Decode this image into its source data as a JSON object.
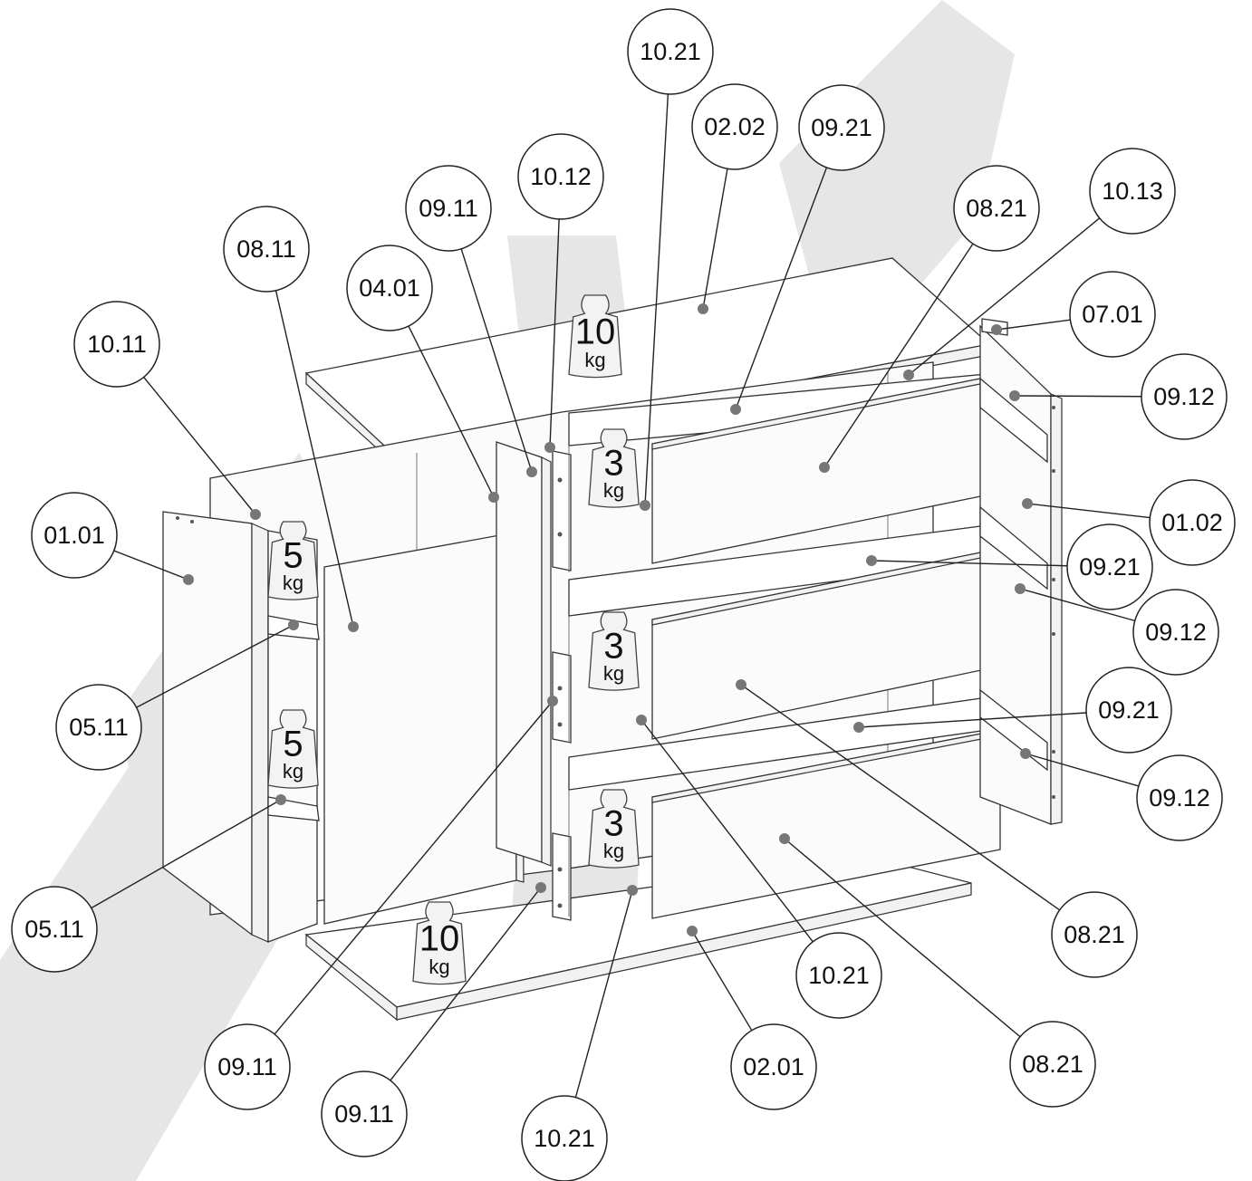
{
  "callouts": [
    {
      "label": "10.21"
    },
    {
      "label": "02.02"
    },
    {
      "label": "09.21"
    },
    {
      "label": "10.12"
    },
    {
      "label": "09.11"
    },
    {
      "label": "08.21"
    },
    {
      "label": "10.13"
    },
    {
      "label": "08.11"
    },
    {
      "label": "04.01"
    },
    {
      "label": "07.01"
    },
    {
      "label": "10.11"
    },
    {
      "label": "09.12"
    },
    {
      "label": "01.02"
    },
    {
      "label": "01.01"
    },
    {
      "label": "09.21"
    },
    {
      "label": "09.12"
    },
    {
      "label": "05.11"
    },
    {
      "label": "09.21"
    },
    {
      "label": "09.12"
    },
    {
      "label": "05.11"
    },
    {
      "label": "08.21"
    },
    {
      "label": "10.21"
    },
    {
      "label": "09.11"
    },
    {
      "label": "09.11"
    },
    {
      "label": "02.01"
    },
    {
      "label": "08.21"
    },
    {
      "label": "10.21"
    }
  ],
  "weights": [
    {
      "value": "10",
      "unit": "kg"
    },
    {
      "value": "3",
      "unit": "kg"
    },
    {
      "value": "5",
      "unit": "kg"
    },
    {
      "value": "3",
      "unit": "kg"
    },
    {
      "value": "5",
      "unit": "kg"
    },
    {
      "value": "3",
      "unit": "kg"
    },
    {
      "value": "10",
      "unit": "kg"
    }
  ]
}
